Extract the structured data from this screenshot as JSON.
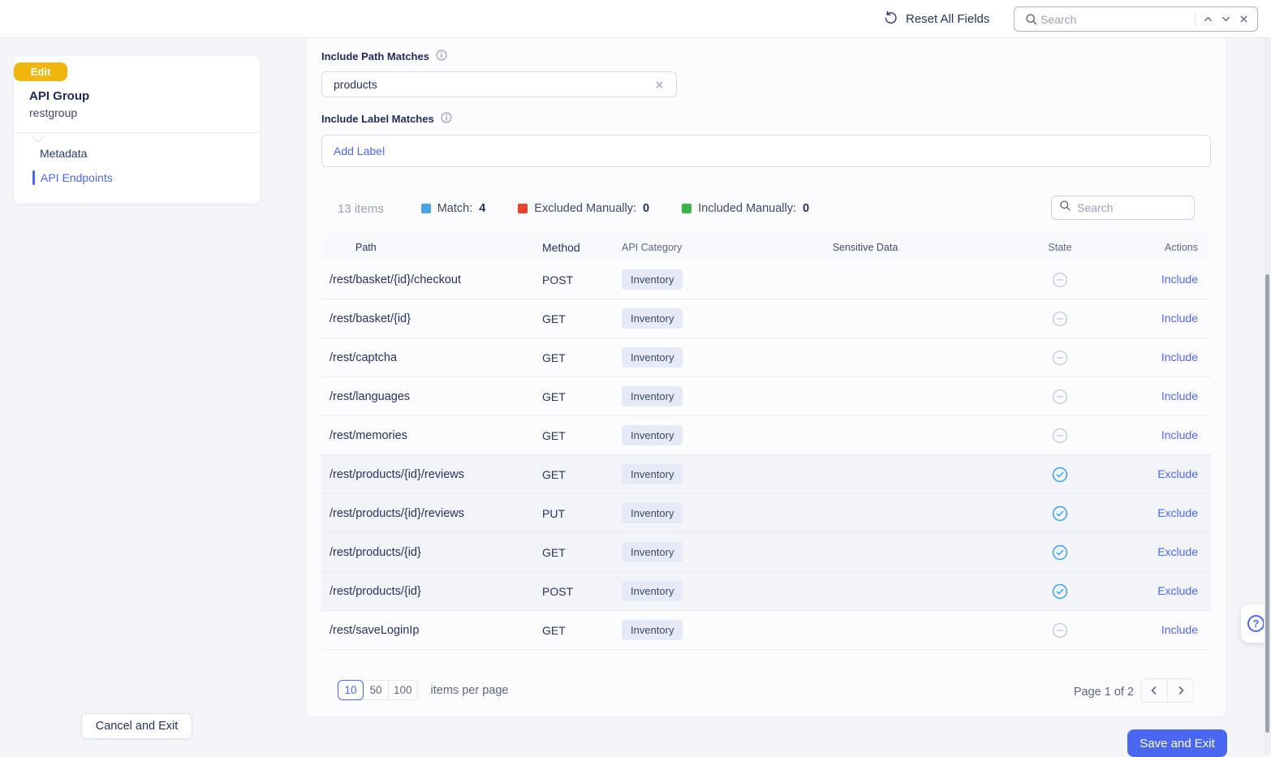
{
  "topbar": {
    "reset_label": "Reset All Fields",
    "search_placeholder": "Search"
  },
  "sidebar": {
    "badge": "Edit",
    "title": "API Group",
    "name": "restgroup",
    "items": [
      {
        "label": "Metadata"
      },
      {
        "label": "API Endpoints"
      }
    ]
  },
  "filters": {
    "path_label": "Include Path Matches",
    "path_value": "products",
    "label_label": "Include Label Matches",
    "label_placeholder": "Add Label"
  },
  "summary": {
    "count": "13 items",
    "legend": [
      {
        "label": "Match:",
        "value": "4",
        "color": "#4BA3E3"
      },
      {
        "label": "Excluded Manually:",
        "value": "0",
        "color": "#E8432D"
      },
      {
        "label": "Included Manually:",
        "value": "0",
        "color": "#3CB54A"
      }
    ],
    "search_placeholder": "Search"
  },
  "table": {
    "columns": [
      "Path",
      "Method",
      "API Category",
      "Sensitive Data",
      "State",
      "Actions"
    ],
    "rows": [
      {
        "path": "/rest/basket/{id}/checkout",
        "method": "POST",
        "category": "Inventory",
        "sensitive": "",
        "state": "minus",
        "action": "Include",
        "matched": false
      },
      {
        "path": "/rest/basket/{id}",
        "method": "GET",
        "category": "Inventory",
        "sensitive": "",
        "state": "minus",
        "action": "Include",
        "matched": false
      },
      {
        "path": "/rest/captcha",
        "method": "GET",
        "category": "Inventory",
        "sensitive": "",
        "state": "minus",
        "action": "Include",
        "matched": false
      },
      {
        "path": "/rest/languages",
        "method": "GET",
        "category": "Inventory",
        "sensitive": "",
        "state": "minus",
        "action": "Include",
        "matched": false
      },
      {
        "path": "/rest/memories",
        "method": "GET",
        "category": "Inventory",
        "sensitive": "",
        "state": "minus",
        "action": "Include",
        "matched": false
      },
      {
        "path": "/rest/products/{id}/reviews",
        "method": "GET",
        "category": "Inventory",
        "sensitive": "",
        "state": "check",
        "action": "Exclude",
        "matched": true
      },
      {
        "path": "/rest/products/{id}/reviews",
        "method": "PUT",
        "category": "Inventory",
        "sensitive": "",
        "state": "check",
        "action": "Exclude",
        "matched": true
      },
      {
        "path": "/rest/products/{id}",
        "method": "GET",
        "category": "Inventory",
        "sensitive": "",
        "state": "check",
        "action": "Exclude",
        "matched": true
      },
      {
        "path": "/rest/products/{id}",
        "method": "POST",
        "category": "Inventory",
        "sensitive": "",
        "state": "check",
        "action": "Exclude",
        "matched": true
      },
      {
        "path": "/rest/saveLoginIp",
        "method": "GET",
        "category": "Inventory",
        "sensitive": "",
        "state": "minus",
        "action": "Include",
        "matched": false
      }
    ]
  },
  "pagination": {
    "page_sizes": [
      "10",
      "50",
      "100"
    ],
    "active_size": "10",
    "suffix": "items per page",
    "page_text": "Page 1 of 2"
  },
  "footer": {
    "cancel": "Cancel and Exit",
    "save": "Save and Exit"
  },
  "help": {
    "glyph": "?"
  },
  "colors": {
    "accent": "#4C68F0",
    "gold": "#F0B60E",
    "check_blue": "#45A6EF",
    "minus_gray": "#C9CFE0"
  }
}
